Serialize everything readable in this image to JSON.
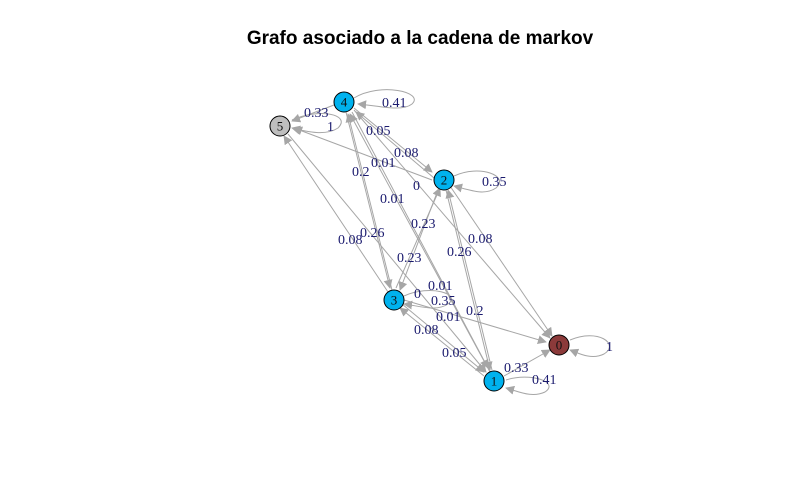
{
  "title": "Grafo asociado a la cadena de markov",
  "colors": {
    "transient": "#00b2ee",
    "absorbing": "#8b3a3a",
    "isolated": "#bebebe",
    "edge": "#a6a6a6",
    "edge_label": "#1a1a6e"
  },
  "nodes": [
    {
      "id": "0",
      "label": "0",
      "type": "absorbing"
    },
    {
      "id": "1",
      "label": "1",
      "type": "transient"
    },
    {
      "id": "2",
      "label": "2",
      "type": "transient"
    },
    {
      "id": "3",
      "label": "3",
      "type": "transient"
    },
    {
      "id": "4",
      "label": "4",
      "type": "transient"
    },
    {
      "id": "5",
      "label": "5",
      "type": "isolated"
    }
  ],
  "edge_labels": [
    "0.33",
    "1",
    "0.41",
    "0.05",
    "0.08",
    "0.01",
    "0.2",
    "0",
    "0.35",
    "0.01",
    "0.23",
    "0.26",
    "0.08",
    "0.26",
    "0.08",
    "0.23",
    "0.01",
    "0",
    "0.35",
    "0.01",
    "0.2",
    "0.08",
    "0.05",
    "0.33",
    "0.41",
    "1"
  ]
}
